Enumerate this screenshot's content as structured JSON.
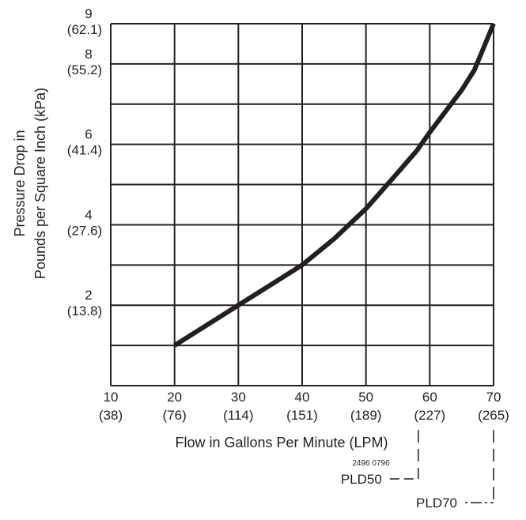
{
  "chart_data": {
    "type": "line",
    "title": "",
    "xlabel": "Flow in Gallons Per Minute (LPM)",
    "ylabel_line1": "Pressure Drop in",
    "ylabel_line2": "Pounds per Square Inch (kPa)",
    "xlim": [
      10,
      70
    ],
    "ylim": [
      0,
      9
    ],
    "grid": true,
    "x_ticks": [
      {
        "value": 10,
        "label": "10",
        "sub": "(38)"
      },
      {
        "value": 20,
        "label": "20",
        "sub": "(76)"
      },
      {
        "value": 30,
        "label": "30",
        "sub": "(114)"
      },
      {
        "value": 40,
        "label": "40",
        "sub": "(151)"
      },
      {
        "value": 50,
        "label": "50",
        "sub": "(189)"
      },
      {
        "value": 60,
        "label": "60",
        "sub": "(227)"
      },
      {
        "value": 70,
        "label": "70",
        "sub": "(265)"
      }
    ],
    "y_ticks": [
      {
        "value": 2,
        "label": "2",
        "sub": "(13.8)"
      },
      {
        "value": 4,
        "label": "4",
        "sub": "(27.6)"
      },
      {
        "value": 6,
        "label": "6",
        "sub": "(41.4)"
      },
      {
        "value": 8,
        "label": "8",
        "sub": "(55.2)"
      },
      {
        "value": 9,
        "label": "9",
        "sub": "(62.1)"
      }
    ],
    "y_gridlines": [
      1,
      2,
      3,
      4,
      5,
      6,
      7,
      8,
      9
    ],
    "series": [
      {
        "x": [
          20,
          25,
          30,
          35,
          40,
          45,
          50,
          55,
          58,
          60,
          65,
          67,
          70
        ],
        "y": [
          1.0,
          1.5,
          2.0,
          2.5,
          3.0,
          3.65,
          4.4,
          5.3,
          5.85,
          6.3,
          7.35,
          7.85,
          9.0
        ]
      }
    ],
    "markers": [
      {
        "label": "PLD50",
        "x": 58.2
      },
      {
        "label": "PLD70",
        "x": 70
      }
    ],
    "code": "2496 0796"
  }
}
